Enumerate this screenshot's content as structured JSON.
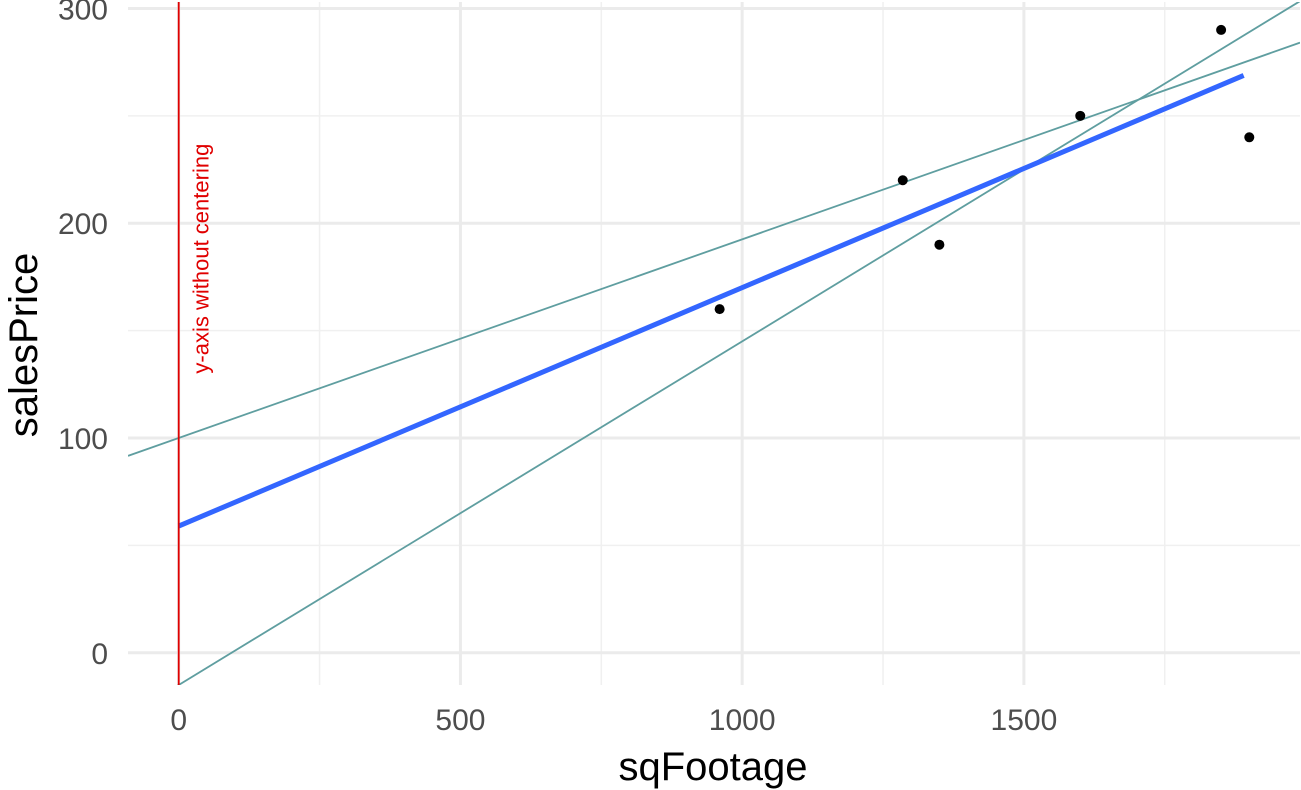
{
  "chart_data": {
    "type": "scatter",
    "title": "",
    "xlabel": "sqFootage",
    "ylabel": "salesPrice",
    "xlim": [
      -90,
      1990
    ],
    "ylim": [
      -15,
      303
    ],
    "x_ticks": [
      0,
      500,
      1000,
      1500
    ],
    "y_ticks": [
      0,
      100,
      200,
      300
    ],
    "grid": true,
    "legend": "none",
    "points": [
      {
        "x": 960,
        "y": 160
      },
      {
        "x": 1285,
        "y": 220
      },
      {
        "x": 1350,
        "y": 190
      },
      {
        "x": 1600,
        "y": 250
      },
      {
        "x": 1850,
        "y": 290
      },
      {
        "x": 1900,
        "y": 240
      }
    ],
    "fit_line": {
      "intercept": 59,
      "slope": 0.111,
      "x_range": [
        0,
        1890
      ],
      "color": "#3366ff"
    },
    "reference_lines": [
      {
        "intercept": 100,
        "slope": 0.0925,
        "color": "#5f9ea0"
      },
      {
        "intercept": -15,
        "slope": 0.16,
        "color": "#5f9ea0"
      }
    ],
    "vline": {
      "x": 0,
      "color": "#e00000",
      "label": "y-axis without centering"
    }
  }
}
